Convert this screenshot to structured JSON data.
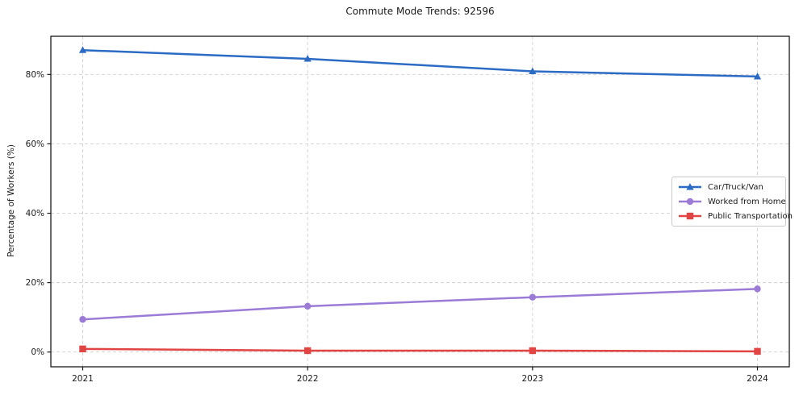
{
  "chart_data": {
    "type": "line",
    "title": "Commute Mode Trends: 92596",
    "xlabel": "",
    "ylabel": "Percentage of Workers (%)",
    "categories": [
      "2021",
      "2022",
      "2023",
      "2024"
    ],
    "series": [
      {
        "name": "Car/Truck/Van",
        "color": "#2b6bc3",
        "marker": "triangle",
        "values": [
          87.0,
          84.5,
          80.9,
          79.4
        ]
      },
      {
        "name": "Worked from Home",
        "color": "#9b7bd6",
        "marker": "circle",
        "values": [
          9.4,
          13.2,
          15.8,
          18.2
        ]
      },
      {
        "name": "Public Transportation",
        "color": "#e24343",
        "marker": "square",
        "values": [
          0.9,
          0.4,
          0.4,
          0.2
        ]
      }
    ],
    "ylim": [
      -4.25,
      91
    ],
    "yticks": [
      0,
      20,
      40,
      60,
      80
    ],
    "ytick_labels": [
      "0%",
      "20%",
      "40%",
      "60%",
      "80%"
    ],
    "grid": "dashed-both-axes",
    "grid_color": "#cfcfcf",
    "spine_color": "#1a1a1a",
    "legend_position": "center-right",
    "background": "#ffffff"
  }
}
